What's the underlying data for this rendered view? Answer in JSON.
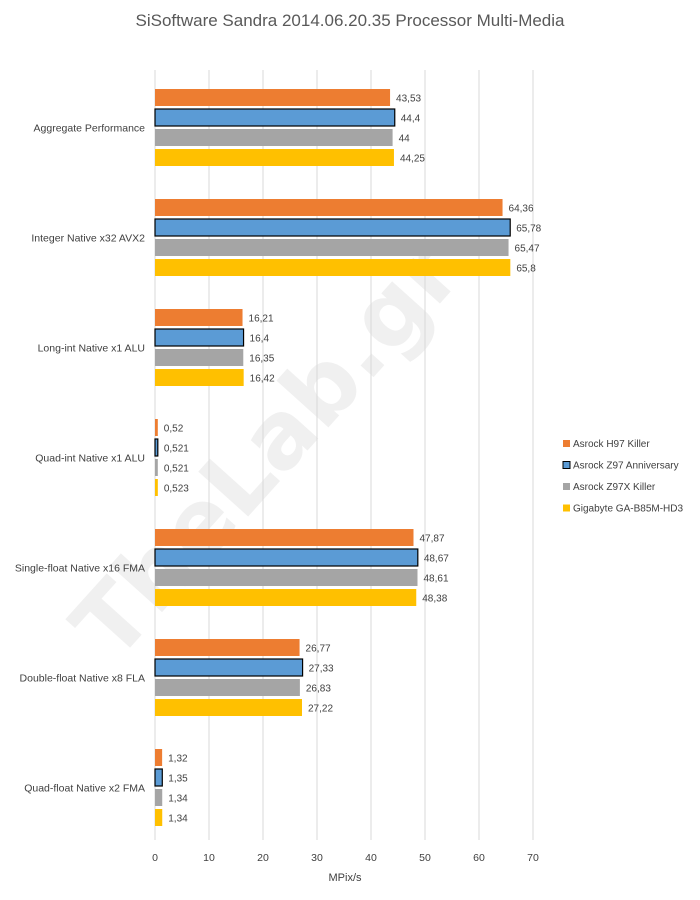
{
  "chart_data": {
    "type": "bar",
    "orientation": "horizontal",
    "title": "SiSoftware Sandra 2014.06.20.35 Processor Multi-Media",
    "xlabel": "MPix/s",
    "ylabel": "",
    "xlim": [
      0,
      70
    ],
    "xticks": [
      0,
      10,
      20,
      30,
      40,
      50,
      60,
      70
    ],
    "grid": true,
    "legend_position": "right",
    "watermark": "TheLab.gr",
    "categories": [
      "Aggregate Performance",
      "Integer Native x32 AVX2",
      "Long-int Native x1 ALU",
      "Quad-int Native x1 ALU",
      "Single-float Native x16 FMA",
      "Double-float Native x8 FLA",
      "Quad-float Native x2 FMA"
    ],
    "series": [
      {
        "name": "Asrock H97 Killer",
        "color": "#ed7d31",
        "outline": false,
        "values": [
          43.53,
          64.36,
          16.21,
          0.52,
          47.87,
          26.77,
          1.32
        ],
        "labels": [
          "43,53",
          "64,36",
          "16,21",
          "0,52",
          "47,87",
          "26,77",
          "1,32"
        ]
      },
      {
        "name": "Asrock Z97 Anniversary",
        "color": "#5b9bd5",
        "outline": true,
        "values": [
          44.4,
          65.78,
          16.4,
          0.521,
          48.67,
          27.33,
          1.35
        ],
        "labels": [
          "44,4",
          "65,78",
          "16,4",
          "0,521",
          "48,67",
          "27,33",
          "1,35"
        ]
      },
      {
        "name": "Asrock Z97X Killer",
        "color": "#a5a5a5",
        "outline": false,
        "values": [
          44,
          65.47,
          16.35,
          0.521,
          48.61,
          26.83,
          1.34
        ],
        "labels": [
          "44",
          "65,47",
          "16,35",
          "0,521",
          "48,61",
          "26,83",
          "1,34"
        ]
      },
      {
        "name": "Gigabyte GA-B85M-HD3",
        "color": "#ffc000",
        "outline": false,
        "values": [
          44.25,
          65.8,
          16.42,
          0.523,
          48.38,
          27.22,
          1.34
        ],
        "labels": [
          "44,25",
          "65,8",
          "16,42",
          "0,523",
          "48,38",
          "27,22",
          "1,34"
        ]
      }
    ]
  }
}
